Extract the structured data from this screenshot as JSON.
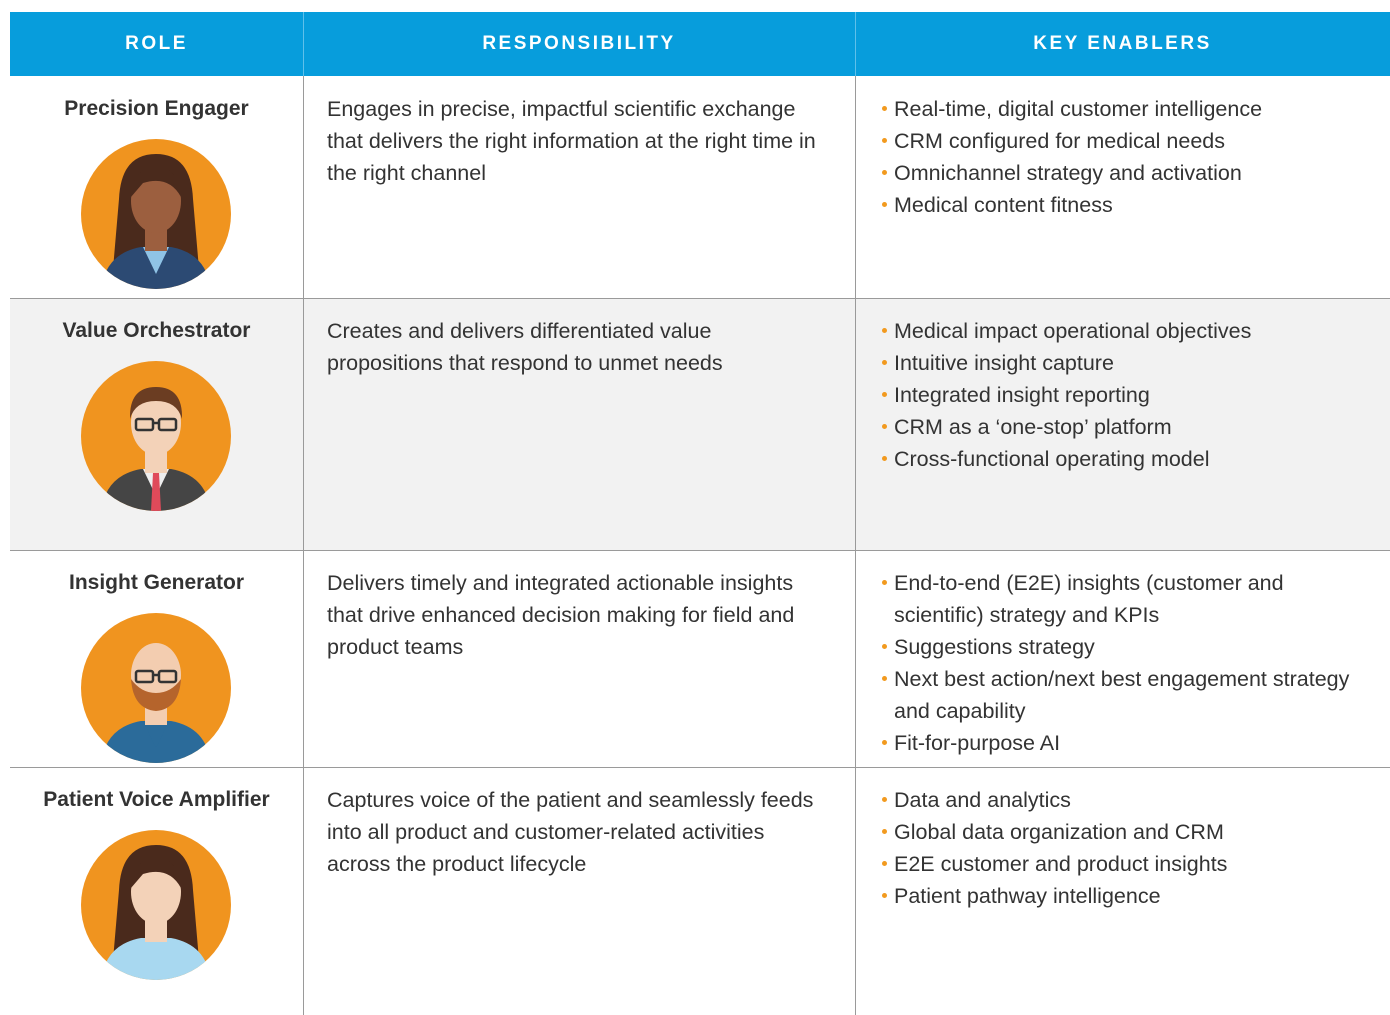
{
  "header": {
    "columns": [
      "ROLE",
      "RESPONSIBILITY",
      "KEY ENABLERS"
    ]
  },
  "rows": [
    {
      "role": "Precision Engager",
      "responsibility": "Engages in precise, impactful scientific exchange that delivers the right information at the right time in the right channel",
      "enablers": [
        "Real-time, digital customer intelligence",
        "CRM configured for medical needs",
        "Omnichannel strategy and activation",
        "Medical content fitness"
      ]
    },
    {
      "role": "Value Orchestrator",
      "responsibility": "Creates and delivers differentiated value propositions that respond to unmet needs",
      "enablers": [
        "Medical impact operational objectives",
        "Intuitive insight capture",
        "Integrated insight reporting",
        "CRM as a ‘one-stop’ platform",
        "Cross-functional operating model"
      ]
    },
    {
      "role": "Insight Generator",
      "responsibility": "Delivers timely and integrated actionable insights that drive enhanced decision making for field and product teams",
      "enablers": [
        "End-to-end (E2E) insights (customer and scientific) strategy and KPIs",
        "Suggestions strategy",
        "Next best action/next best engagement strategy and capability",
        "Fit-for-purpose AI"
      ]
    },
    {
      "role": "Patient Voice Amplifier",
      "responsibility": "Captures voice of the patient and seamlessly feeds into all product and customer-related activities across the product lifecycle",
      "enablers": [
        "Data and analytics",
        "Global data organization and CRM",
        "E2E customer and product insights",
        "Patient pathway intelligence"
      ]
    }
  ]
}
